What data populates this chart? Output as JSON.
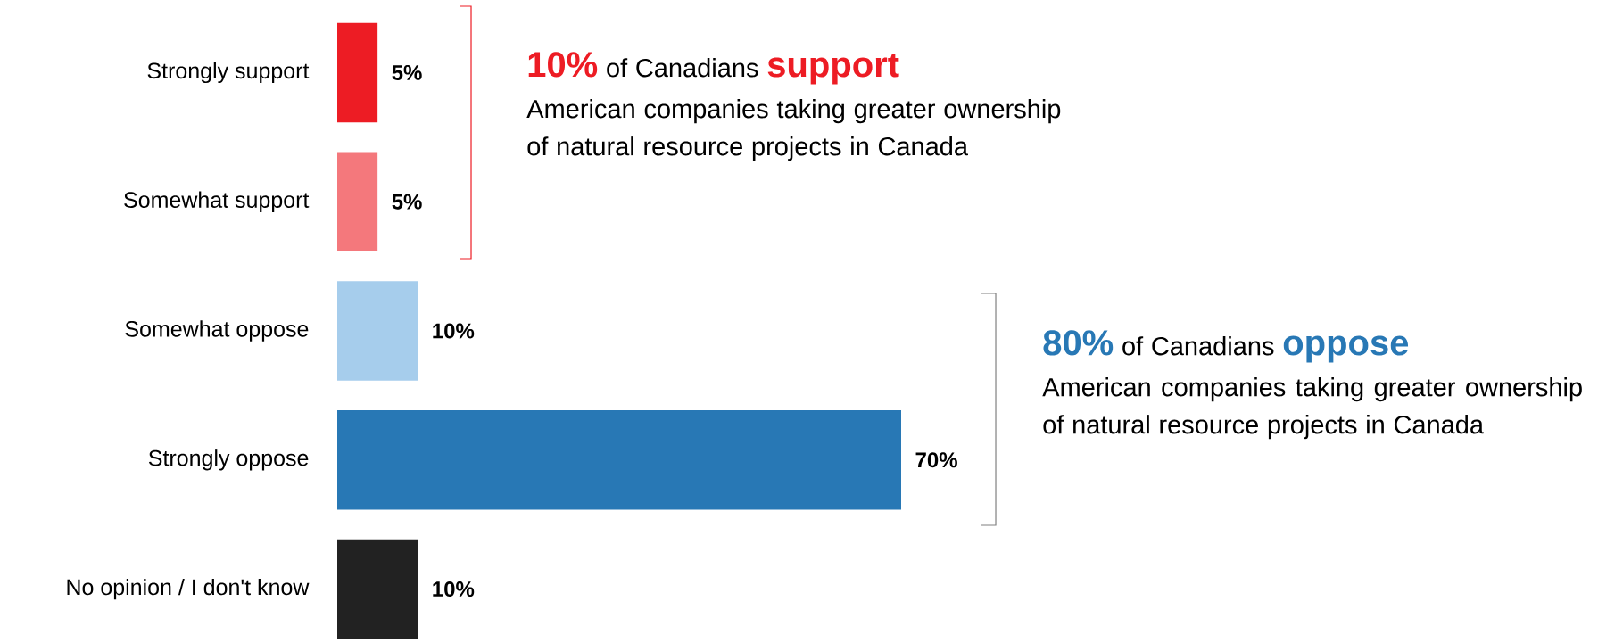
{
  "chart_data": {
    "type": "bar",
    "orientation": "horizontal",
    "categories": [
      "Strongly support",
      "Somewhat support",
      "Somewhat oppose",
      "Strongly oppose",
      "No opinion / I don't know"
    ],
    "values": [
      5,
      5,
      10,
      70,
      10
    ],
    "colors": [
      "#ed1c24",
      "#f4787c",
      "#a6cdec",
      "#2878b5",
      "#222222"
    ],
    "value_labels": [
      "5%",
      "5%",
      "10%",
      "70%",
      "10%"
    ],
    "annotations": [
      "**10%** of Canadians **support**",
      "American companies taking greater ownership of natural resource projects in Canada",
      "**80%** of Canadians **oppose**",
      "American companies taking greater ownership of natural resource projects in Canada"
    ]
  }
}
